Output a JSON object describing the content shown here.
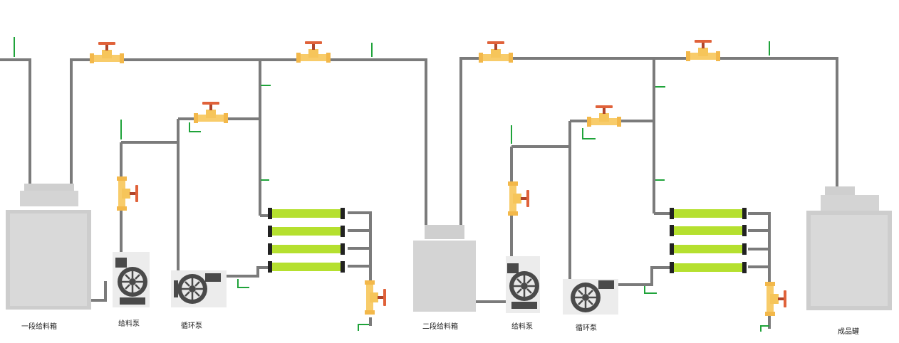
{
  "labels": {
    "tank1": "一段给料箱",
    "feed_pump1": "给料泵",
    "circ_pump1": "循环泵",
    "tank2": "二段给料箱",
    "feed_pump2": "给料泵",
    "circ_pump2": "循环泵",
    "product_tank": "成品罐"
  },
  "colors": {
    "pipe": "#7b7b7b",
    "tank": "#c9c9c9",
    "valve": "#f6c55a",
    "valve_handle": "#e0623a",
    "membrane": "#b5e02f",
    "pump": "#4a4a4a",
    "sensor": "#1fa33a"
  }
}
